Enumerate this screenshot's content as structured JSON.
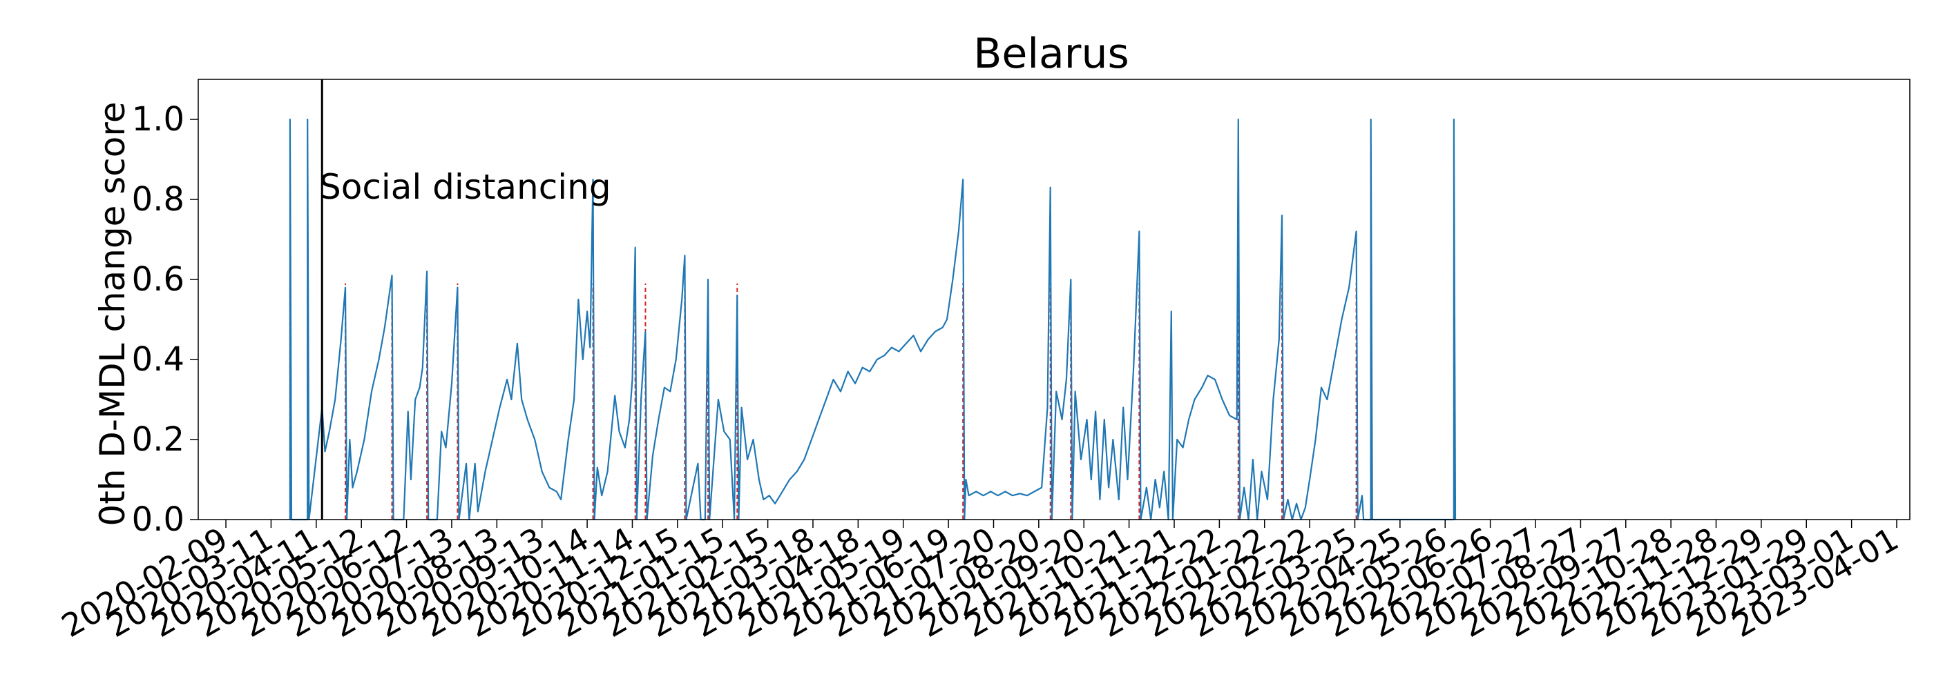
{
  "chart_data": {
    "type": "line",
    "title": "Belarus",
    "xlabel": "",
    "ylabel": "0th D-MDL change score",
    "ylim": [
      0,
      1.1
    ],
    "yticks": [
      0.0,
      0.2,
      0.4,
      0.6,
      0.8,
      1.0
    ],
    "ytick_labels": [
      "0.0",
      "0.2",
      "0.4",
      "0.6",
      "0.8",
      "1.0"
    ],
    "xlim": [
      "2020-01-21",
      "2023-04-10"
    ],
    "xtick_dates": [
      "2020-02-09",
      "2020-03-11",
      "2020-04-11",
      "2020-05-12",
      "2020-06-12",
      "2020-07-13",
      "2020-08-13",
      "2020-09-13",
      "2020-10-14",
      "2020-11-14",
      "2020-12-15",
      "2021-01-15",
      "2021-02-15",
      "2021-03-18",
      "2021-04-18",
      "2021-05-19",
      "2021-06-19",
      "2021-07-20",
      "2021-08-20",
      "2021-09-20",
      "2021-10-21",
      "2021-11-21",
      "2021-12-22",
      "2022-01-22",
      "2022-02-22",
      "2022-03-25",
      "2022-04-25",
      "2022-05-26",
      "2022-06-26",
      "2022-07-27",
      "2022-08-27",
      "2022-09-27",
      "2022-10-28",
      "2022-11-28",
      "2022-12-29",
      "2023-01-29",
      "2023-03-01",
      "2023-04-01"
    ],
    "grid": false,
    "line_color": "#1f77b4",
    "alarm_color": "#d62728",
    "annotation": {
      "text": "Social distancing",
      "date": "2020-04-15",
      "line_color": "#000000"
    },
    "series": [
      {
        "points": [
          [
            "2020-03-24",
            0
          ],
          [
            "2020-03-24",
            1.0
          ],
          [
            "2020-03-25",
            0
          ],
          [
            "2020-04-05",
            0
          ],
          [
            "2020-04-05",
            1.0
          ],
          [
            "2020-04-06",
            0
          ],
          [
            "2020-04-15",
            0.28
          ],
          [
            "2020-04-17",
            0.17
          ],
          [
            "2020-04-20",
            0.22
          ],
          [
            "2020-04-24",
            0.3
          ],
          [
            "2020-04-28",
            0.45
          ],
          [
            "2020-05-01",
            0.58
          ],
          [
            "2020-05-02",
            0
          ],
          [
            "2020-05-04",
            0.2
          ],
          [
            "2020-05-06",
            0.08
          ],
          [
            "2020-05-09",
            0.12
          ],
          [
            "2020-05-14",
            0.2
          ],
          [
            "2020-05-19",
            0.32
          ],
          [
            "2020-05-24",
            0.4
          ],
          [
            "2020-05-28",
            0.48
          ],
          [
            "2020-06-02",
            0.61
          ],
          [
            "2020-06-03",
            0
          ],
          [
            "2020-06-10",
            0
          ],
          [
            "2020-06-13",
            0.27
          ],
          [
            "2020-06-15",
            0.1
          ],
          [
            "2020-06-18",
            0.3
          ],
          [
            "2020-06-21",
            0.33
          ],
          [
            "2020-06-23",
            0.38
          ],
          [
            "2020-06-26",
            0.62
          ],
          [
            "2020-06-27",
            0
          ],
          [
            "2020-07-03",
            0
          ],
          [
            "2020-07-06",
            0.22
          ],
          [
            "2020-07-09",
            0.18
          ],
          [
            "2020-07-13",
            0.34
          ],
          [
            "2020-07-17",
            0.58
          ],
          [
            "2020-07-18",
            0
          ],
          [
            "2020-07-23",
            0.14
          ],
          [
            "2020-07-25",
            0
          ],
          [
            "2020-07-29",
            0.14
          ],
          [
            "2020-07-31",
            0.02
          ],
          [
            "2020-08-05",
            0.12
          ],
          [
            "2020-08-10",
            0.2
          ],
          [
            "2020-08-15",
            0.28
          ],
          [
            "2020-08-20",
            0.35
          ],
          [
            "2020-08-23",
            0.3
          ],
          [
            "2020-08-27",
            0.44
          ],
          [
            "2020-08-30",
            0.3
          ],
          [
            "2020-09-03",
            0.25
          ],
          [
            "2020-09-08",
            0.2
          ],
          [
            "2020-09-13",
            0.12
          ],
          [
            "2020-09-18",
            0.08
          ],
          [
            "2020-09-23",
            0.07
          ],
          [
            "2020-09-26",
            0.05
          ],
          [
            "2020-10-01",
            0.2
          ],
          [
            "2020-10-05",
            0.3
          ],
          [
            "2020-10-08",
            0.55
          ],
          [
            "2020-10-11",
            0.4
          ],
          [
            "2020-10-14",
            0.52
          ],
          [
            "2020-10-16",
            0.43
          ],
          [
            "2020-10-18",
            0.85
          ],
          [
            "2020-10-19",
            0
          ],
          [
            "2020-10-21",
            0.13
          ],
          [
            "2020-10-24",
            0.06
          ],
          [
            "2020-10-28",
            0.12
          ],
          [
            "2020-11-02",
            0.31
          ],
          [
            "2020-11-05",
            0.22
          ],
          [
            "2020-11-09",
            0.18
          ],
          [
            "2020-11-12",
            0.25
          ],
          [
            "2020-11-14",
            0.35
          ],
          [
            "2020-11-16",
            0.68
          ],
          [
            "2020-11-17",
            0
          ],
          [
            "2020-11-20",
            0.3
          ],
          [
            "2020-11-23",
            0.47
          ],
          [
            "2020-11-24",
            0
          ],
          [
            "2020-11-28",
            0.16
          ],
          [
            "2020-12-02",
            0.25
          ],
          [
            "2020-12-06",
            0.33
          ],
          [
            "2020-12-10",
            0.32
          ],
          [
            "2020-12-14",
            0.4
          ],
          [
            "2020-12-18",
            0.55
          ],
          [
            "2020-12-20",
            0.66
          ],
          [
            "2020-12-21",
            0
          ],
          [
            "2020-12-29",
            0.14
          ],
          [
            "2020-12-31",
            0
          ],
          [
            "2021-01-03",
            0
          ],
          [
            "2021-01-05",
            0.6
          ],
          [
            "2021-01-06",
            0
          ],
          [
            "2021-01-12",
            0.3
          ],
          [
            "2021-01-16",
            0.22
          ],
          [
            "2021-01-20",
            0.2
          ],
          [
            "2021-01-23",
            0
          ],
          [
            "2021-01-25",
            0.56
          ],
          [
            "2021-01-26",
            0
          ],
          [
            "2021-01-28",
            0.28
          ],
          [
            "2021-02-01",
            0.15
          ],
          [
            "2021-02-05",
            0.2
          ],
          [
            "2021-02-09",
            0.1
          ],
          [
            "2021-02-12",
            0.05
          ],
          [
            "2021-02-16",
            0.06
          ],
          [
            "2021-02-20",
            0.04
          ],
          [
            "2021-02-25",
            0.07
          ],
          [
            "2021-03-02",
            0.1
          ],
          [
            "2021-03-07",
            0.12
          ],
          [
            "2021-03-12",
            0.15
          ],
          [
            "2021-03-17",
            0.2
          ],
          [
            "2021-03-22",
            0.25
          ],
          [
            "2021-03-27",
            0.3
          ],
          [
            "2021-04-01",
            0.35
          ],
          [
            "2021-04-06",
            0.32
          ],
          [
            "2021-04-11",
            0.37
          ],
          [
            "2021-04-16",
            0.34
          ],
          [
            "2021-04-21",
            0.38
          ],
          [
            "2021-04-26",
            0.37
          ],
          [
            "2021-05-01",
            0.4
          ],
          [
            "2021-05-06",
            0.41
          ],
          [
            "2021-05-11",
            0.43
          ],
          [
            "2021-05-16",
            0.42
          ],
          [
            "2021-05-21",
            0.44
          ],
          [
            "2021-05-26",
            0.46
          ],
          [
            "2021-05-31",
            0.42
          ],
          [
            "2021-06-05",
            0.45
          ],
          [
            "2021-06-10",
            0.47
          ],
          [
            "2021-06-15",
            0.48
          ],
          [
            "2021-06-18",
            0.5
          ],
          [
            "2021-06-22",
            0.6
          ],
          [
            "2021-06-26",
            0.72
          ],
          [
            "2021-06-29",
            0.85
          ],
          [
            "2021-06-30",
            0
          ],
          [
            "2021-07-01",
            0.1
          ],
          [
            "2021-07-03",
            0.06
          ],
          [
            "2021-07-08",
            0.07
          ],
          [
            "2021-07-13",
            0.06
          ],
          [
            "2021-07-18",
            0.07
          ],
          [
            "2021-07-23",
            0.06
          ],
          [
            "2021-07-28",
            0.07
          ],
          [
            "2021-08-02",
            0.06
          ],
          [
            "2021-08-07",
            0.065
          ],
          [
            "2021-08-12",
            0.06
          ],
          [
            "2021-08-17",
            0.07
          ],
          [
            "2021-08-22",
            0.08
          ],
          [
            "2021-08-26",
            0.28
          ],
          [
            "2021-08-28",
            0.83
          ],
          [
            "2021-08-29",
            0
          ],
          [
            "2021-09-01",
            0.32
          ],
          [
            "2021-09-05",
            0.25
          ],
          [
            "2021-09-08",
            0.35
          ],
          [
            "2021-09-11",
            0.6
          ],
          [
            "2021-09-12",
            0
          ],
          [
            "2021-09-14",
            0.32
          ],
          [
            "2021-09-18",
            0.15
          ],
          [
            "2021-09-22",
            0.25
          ],
          [
            "2021-09-25",
            0.1
          ],
          [
            "2021-09-28",
            0.27
          ],
          [
            "2021-10-01",
            0.05
          ],
          [
            "2021-10-04",
            0.25
          ],
          [
            "2021-10-07",
            0.08
          ],
          [
            "2021-10-10",
            0.2
          ],
          [
            "2021-10-14",
            0.05
          ],
          [
            "2021-10-17",
            0.28
          ],
          [
            "2021-10-20",
            0.1
          ],
          [
            "2021-10-24",
            0.37
          ],
          [
            "2021-10-28",
            0.72
          ],
          [
            "2021-10-29",
            0
          ],
          [
            "2021-11-02",
            0.08
          ],
          [
            "2021-11-05",
            0
          ],
          [
            "2021-11-08",
            0.1
          ],
          [
            "2021-11-11",
            0.03
          ],
          [
            "2021-11-14",
            0.12
          ],
          [
            "2021-11-17",
            0
          ],
          [
            "2021-11-19",
            0.52
          ],
          [
            "2021-11-20",
            0
          ],
          [
            "2021-11-23",
            0.2
          ],
          [
            "2021-11-27",
            0.18
          ],
          [
            "2021-12-01",
            0.25
          ],
          [
            "2021-12-05",
            0.3
          ],
          [
            "2021-12-10",
            0.33
          ],
          [
            "2021-12-14",
            0.36
          ],
          [
            "2021-12-19",
            0.35
          ],
          [
            "2021-12-24",
            0.3
          ],
          [
            "2021-12-29",
            0.26
          ],
          [
            "2022-01-03",
            0.25
          ],
          [
            "2022-01-04",
            1.0
          ],
          [
            "2022-01-05",
            0
          ],
          [
            "2022-01-08",
            0.08
          ],
          [
            "2022-01-11",
            0
          ],
          [
            "2022-01-14",
            0.15
          ],
          [
            "2022-01-17",
            0
          ],
          [
            "2022-01-20",
            0.12
          ],
          [
            "2022-01-24",
            0.05
          ],
          [
            "2022-01-28",
            0.3
          ],
          [
            "2022-02-01",
            0.45
          ],
          [
            "2022-02-03",
            0.76
          ],
          [
            "2022-02-04",
            0
          ],
          [
            "2022-02-07",
            0.05
          ],
          [
            "2022-02-10",
            0
          ],
          [
            "2022-02-13",
            0.04
          ],
          [
            "2022-02-16",
            0
          ],
          [
            "2022-02-19",
            0.03
          ],
          [
            "2022-02-22",
            0.1
          ],
          [
            "2022-02-26",
            0.2
          ],
          [
            "2022-03-02",
            0.33
          ],
          [
            "2022-03-06",
            0.3
          ],
          [
            "2022-03-11",
            0.4
          ],
          [
            "2022-03-16",
            0.5
          ],
          [
            "2022-03-21",
            0.58
          ],
          [
            "2022-03-26",
            0.72
          ],
          [
            "2022-03-27",
            0
          ],
          [
            "2022-03-30",
            0.06
          ],
          [
            "2022-03-31",
            0
          ],
          [
            "2022-04-05",
            0
          ],
          [
            "2022-04-05",
            1.0
          ],
          [
            "2022-04-06",
            0
          ],
          [
            "2022-06-01",
            0
          ],
          [
            "2022-06-01",
            1.0
          ],
          [
            "2022-06-02",
            0
          ]
        ]
      }
    ],
    "alarm_dates": [
      "2020-03-24",
      "2020-04-05",
      "2020-05-01",
      "2020-06-02",
      "2020-06-26",
      "2020-07-17",
      "2020-10-18",
      "2020-11-16",
      "2020-11-23",
      "2020-12-20",
      "2021-01-05",
      "2021-01-25",
      "2021-06-29",
      "2021-08-28",
      "2021-09-11",
      "2021-10-28",
      "2022-01-04",
      "2022-02-03",
      "2022-03-26",
      "2022-04-05",
      "2022-06-01"
    ]
  }
}
